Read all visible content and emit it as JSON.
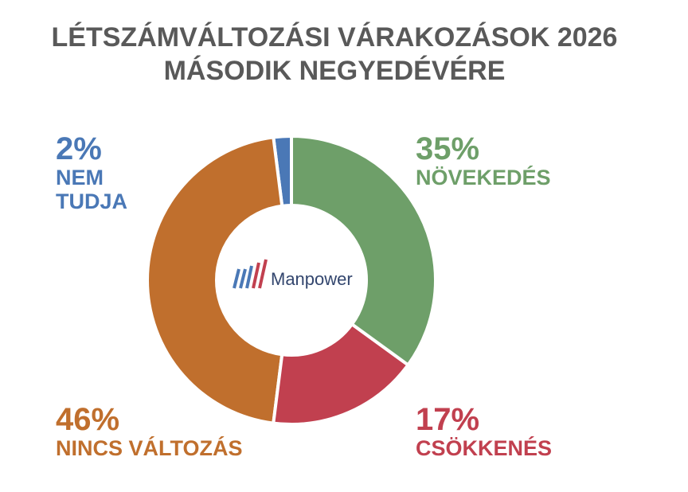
{
  "chart_data": {
    "type": "donut",
    "title": "LÉTSZÁMVÁLTOZÁSI VÁRAKOZÁSOK 2026 MÁSODIK NEGYEDÉVÉRE",
    "center_text": "Manpower",
    "categories": [
      "NÖVEKEDÉS",
      "CSÖKKENÉS",
      "NINCS VÁLTOZÁS",
      "NEM TUDJA"
    ],
    "values": [
      35,
      17,
      46,
      2
    ],
    "value_labels": [
      "35%",
      "17%",
      "46%",
      "2%"
    ],
    "colors": [
      "#6e9f69",
      "#c1404f",
      "#c06f2d",
      "#4a78b6"
    ]
  }
}
